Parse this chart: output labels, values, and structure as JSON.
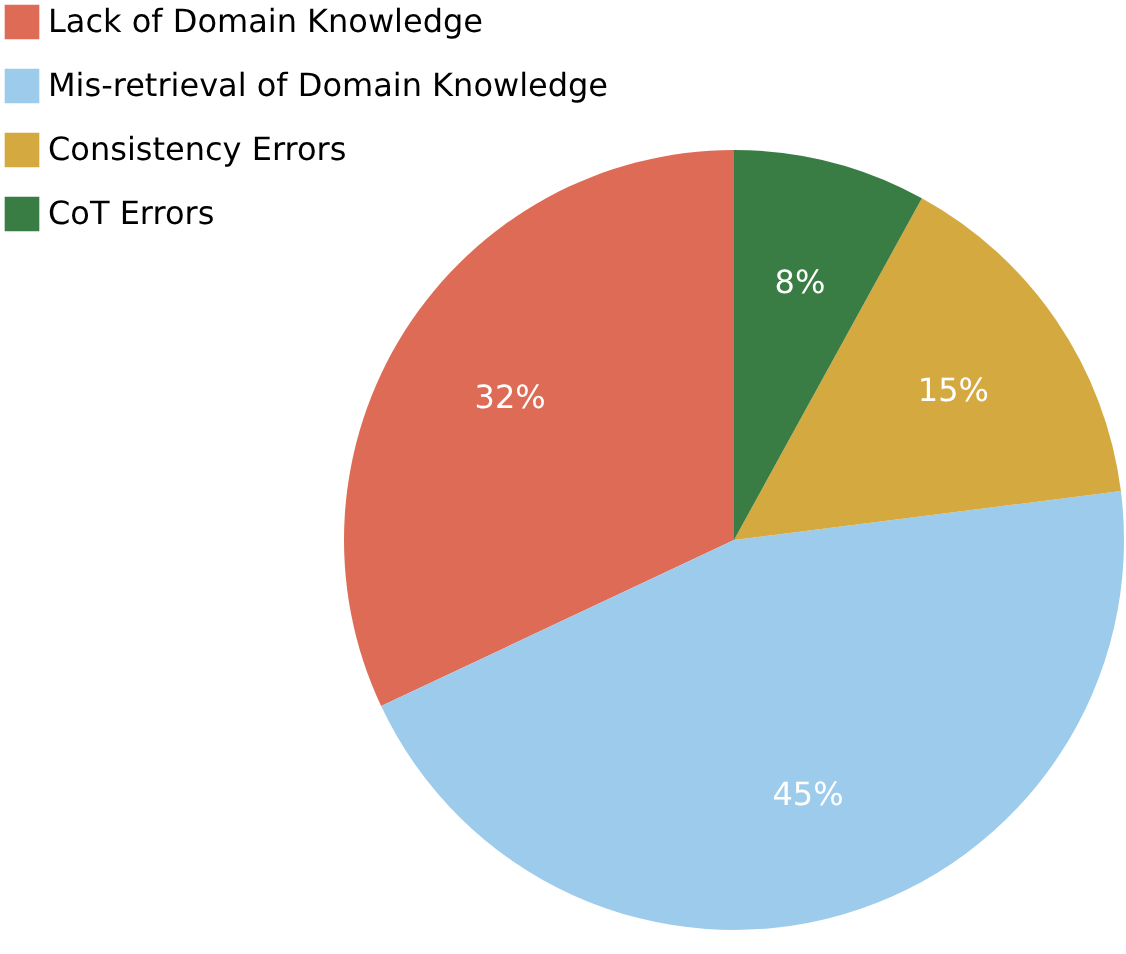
{
  "chart_data": {
    "type": "pie",
    "categories": [
      "Lack of Domain Knowledge",
      "Mis-retrieval of Domain Knowledge",
      "Consistency Errors",
      "CoT Errors"
    ],
    "values": [
      32,
      45,
      15,
      8
    ],
    "value_labels": [
      "32%",
      "45%",
      "15%",
      "8%"
    ],
    "colors": [
      "#dd6b55",
      "#9ccbec",
      "#d4a93f",
      "#3a7d44"
    ],
    "legend": "top left"
  }
}
